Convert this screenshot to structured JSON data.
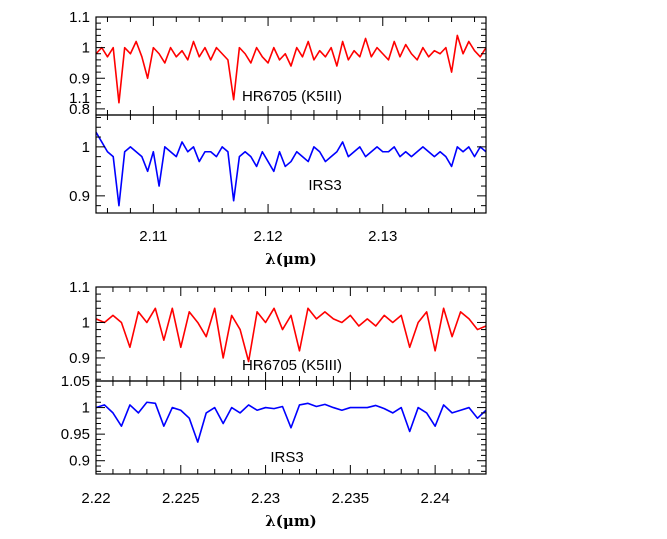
{
  "chart_data": [
    {
      "type": "line",
      "title": "",
      "xlabel": "λ(μm)",
      "xlim": [
        2.105,
        2.139
      ],
      "x_ticks": [
        2.11,
        2.12,
        2.13
      ],
      "x_tick_labels": [
        "2.11",
        "2.12",
        "2.13"
      ],
      "panels": [
        {
          "ylabel": "",
          "ylim": [
            0.78,
            1.1
          ],
          "y_ticks": [
            0.8,
            0.9,
            1.0,
            1.1
          ],
          "y_tick_labels": [
            "0.8",
            "0.9",
            "1",
            "1.1"
          ],
          "annotation": "HR6705 (K5III)",
          "series": [
            {
              "color": "#ff0000",
              "x": [
                2.105,
                2.1055,
                2.106,
                2.1065,
                2.107,
                2.1075,
                2.108,
                2.1085,
                2.109,
                2.1095,
                2.11,
                2.1105,
                2.111,
                2.1115,
                2.112,
                2.1125,
                2.113,
                2.1135,
                2.114,
                2.1145,
                2.115,
                2.1155,
                2.116,
                2.1165,
                2.117,
                2.1175,
                2.118,
                2.1185,
                2.119,
                2.1195,
                2.12,
                2.1205,
                2.121,
                2.1215,
                2.122,
                2.1225,
                2.123,
                2.1235,
                2.124,
                2.1245,
                2.125,
                2.1255,
                2.126,
                2.1265,
                2.127,
                2.1275,
                2.128,
                2.1285,
                2.129,
                2.1295,
                2.13,
                2.1305,
                2.131,
                2.1315,
                2.132,
                2.1325,
                2.133,
                2.1335,
                2.134,
                2.1345,
                2.135,
                2.1355,
                2.136,
                2.1365,
                2.137,
                2.1375,
                2.138,
                2.1385,
                2.139
              ],
              "y": [
                0.98,
                1.0,
                0.97,
                1.0,
                0.82,
                1.0,
                0.98,
                1.02,
                0.97,
                0.9,
                1.0,
                0.98,
                0.95,
                1.0,
                0.97,
                0.99,
                0.96,
                1.02,
                0.97,
                1.0,
                0.96,
                1.0,
                0.98,
                0.96,
                0.83,
                1.0,
                0.98,
                0.95,
                1.0,
                0.97,
                0.95,
                1.0,
                0.96,
                0.98,
                0.94,
                1.0,
                0.97,
                1.02,
                0.96,
                0.99,
                0.97,
                1.0,
                0.94,
                1.02,
                0.96,
                0.99,
                0.97,
                1.03,
                0.97,
                1.0,
                0.98,
                0.96,
                1.02,
                0.97,
                1.01,
                0.98,
                0.96,
                1.0,
                0.97,
                0.99,
                0.98,
                1.0,
                0.92,
                1.04,
                0.98,
                1.02,
                0.99,
                0.97,
                1.0
              ]
            }
          ]
        },
        {
          "ylabel": "",
          "ylim": [
            0.865,
            1.065
          ],
          "y_ticks": [
            0.9,
            1.0,
            1.1
          ],
          "y_tick_labels": [
            "0.9",
            "1",
            "1.1"
          ],
          "annotation": "IRS3",
          "series": [
            {
              "color": "#0000ff",
              "x": [
                2.105,
                2.1055,
                2.106,
                2.1065,
                2.107,
                2.1075,
                2.108,
                2.1085,
                2.109,
                2.1095,
                2.11,
                2.1105,
                2.111,
                2.1115,
                2.112,
                2.1125,
                2.113,
                2.1135,
                2.114,
                2.1145,
                2.115,
                2.1155,
                2.116,
                2.1165,
                2.117,
                2.1175,
                2.118,
                2.1185,
                2.119,
                2.1195,
                2.12,
                2.1205,
                2.121,
                2.1215,
                2.122,
                2.1225,
                2.123,
                2.1235,
                2.124,
                2.1245,
                2.125,
                2.1255,
                2.126,
                2.1265,
                2.127,
                2.1275,
                2.128,
                2.1285,
                2.129,
                2.1295,
                2.13,
                2.1305,
                2.131,
                2.1315,
                2.132,
                2.1325,
                2.133,
                2.1335,
                2.134,
                2.1345,
                2.135,
                2.1355,
                2.136,
                2.1365,
                2.137,
                2.1375,
                2.138,
                2.1385,
                2.139
              ],
              "y": [
                1.03,
                1.01,
                0.99,
                0.98,
                0.88,
                0.99,
                1.0,
                0.99,
                0.98,
                0.95,
                0.99,
                0.92,
                1.0,
                0.99,
                0.98,
                1.01,
                0.99,
                1.0,
                0.97,
                0.99,
                0.99,
                0.98,
                1.0,
                0.99,
                0.89,
                0.98,
                0.99,
                0.98,
                0.96,
                0.99,
                0.97,
                0.95,
                0.99,
                0.96,
                0.97,
                0.99,
                0.98,
                0.97,
                1.0,
                0.99,
                0.97,
                0.98,
                0.99,
                1.01,
                0.98,
                0.99,
                1.0,
                0.98,
                0.99,
                1.0,
                0.99,
                0.99,
                1.0,
                0.98,
                0.99,
                0.98,
                0.99,
                1.0,
                0.99,
                0.98,
                0.99,
                0.98,
                0.96,
                1.0,
                0.99,
                1.0,
                0.98,
                1.0,
                0.99
              ]
            }
          ]
        }
      ]
    },
    {
      "type": "line",
      "title": "",
      "xlabel": "λ(μm)",
      "xlim": [
        2.22,
        2.243
      ],
      "x_ticks": [
        2.22,
        2.225,
        2.23,
        2.235,
        2.24
      ],
      "x_tick_labels": [
        "2.22",
        "2.225",
        "2.23",
        "2.235",
        "2.24"
      ],
      "panels": [
        {
          "ylabel": "",
          "ylim": [
            0.835,
            1.1
          ],
          "y_ticks": [
            0.9,
            1.0,
            1.1
          ],
          "y_tick_labels": [
            "0.9",
            "1",
            "1.1"
          ],
          "annotation": "HR6705 (K5III)",
          "series": [
            {
              "color": "#ff0000",
              "x": [
                2.22,
                2.2205,
                2.221,
                2.2215,
                2.222,
                2.2225,
                2.223,
                2.2235,
                2.224,
                2.2245,
                2.225,
                2.2255,
                2.226,
                2.2265,
                2.227,
                2.2275,
                2.228,
                2.2285,
                2.229,
                2.2295,
                2.23,
                2.2305,
                2.231,
                2.2315,
                2.232,
                2.2325,
                2.233,
                2.2335,
                2.234,
                2.2345,
                2.235,
                2.2355,
                2.236,
                2.2365,
                2.237,
                2.2375,
                2.238,
                2.2385,
                2.239,
                2.2395,
                2.24,
                2.2405,
                2.241,
                2.2415,
                2.242,
                2.2425,
                2.243
              ],
              "y": [
                1.01,
                1.0,
                1.02,
                1.0,
                0.93,
                1.03,
                1.0,
                1.04,
                0.95,
                1.04,
                0.93,
                1.03,
                1.0,
                0.96,
                1.04,
                0.9,
                1.02,
                0.98,
                0.89,
                1.03,
                1.0,
                1.04,
                0.98,
                1.02,
                0.92,
                1.04,
                1.01,
                1.03,
                1.01,
                1.0,
                1.02,
                0.99,
                1.01,
                0.99,
                1.02,
                1.0,
                1.02,
                0.93,
                1.0,
                1.03,
                0.92,
                1.04,
                0.96,
                1.03,
                1.01,
                0.98,
                0.99
              ]
            }
          ]
        },
        {
          "ylabel": "",
          "ylim": [
            0.875,
            1.05
          ],
          "y_ticks": [
            0.9,
            0.95,
            1.0,
            1.05
          ],
          "y_tick_labels": [
            "0.9",
            "0.95",
            "1",
            "1.05"
          ],
          "annotation": "IRS3",
          "series": [
            {
              "color": "#0000ff",
              "x": [
                2.22,
                2.2205,
                2.221,
                2.2215,
                2.222,
                2.2225,
                2.223,
                2.2235,
                2.224,
                2.2245,
                2.225,
                2.2255,
                2.226,
                2.2265,
                2.227,
                2.2275,
                2.228,
                2.2285,
                2.229,
                2.2295,
                2.23,
                2.2305,
                2.231,
                2.2315,
                2.232,
                2.2325,
                2.233,
                2.2335,
                2.234,
                2.2345,
                2.235,
                2.2355,
                2.236,
                2.2365,
                2.237,
                2.2375,
                2.238,
                2.2385,
                2.239,
                2.2395,
                2.24,
                2.2405,
                2.241,
                2.2415,
                2.242,
                2.2425,
                2.243
              ],
              "y": [
                1.0,
                1.005,
                0.99,
                0.965,
                1.005,
                0.99,
                1.01,
                1.008,
                0.965,
                1.0,
                0.995,
                0.98,
                0.935,
                0.99,
                1.0,
                0.97,
                1.0,
                0.99,
                1.005,
                0.995,
                1.0,
                0.998,
                1.002,
                0.962,
                1.005,
                1.008,
                1.002,
                1.006,
                1.0,
                0.995,
                1.0,
                1.0,
                1.0,
                1.004,
                0.998,
                0.99,
                1.0,
                0.955,
                1.0,
                0.99,
                0.965,
                1.005,
                0.99,
                0.995,
                1.0,
                0.98,
                0.995
              ]
            }
          ]
        }
      ]
    }
  ]
}
